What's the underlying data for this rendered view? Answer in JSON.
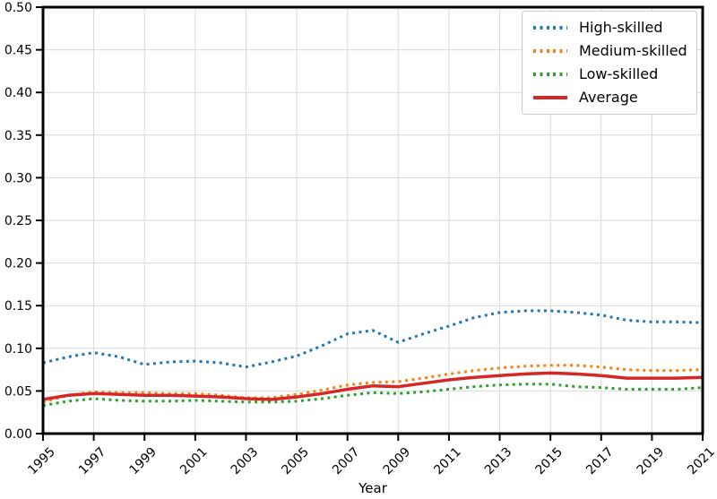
{
  "figure": {
    "background_color": "#ffffff",
    "axis_color": "#000000",
    "grid_color": "#d9d9d9"
  },
  "chart_data": {
    "type": "line",
    "title": "",
    "xlabel": "Year",
    "ylabel": "",
    "xlim": [
      1995,
      2021
    ],
    "ylim": [
      0.0,
      0.5
    ],
    "grid": true,
    "legend_position": "upper right",
    "x": [
      1995,
      1996,
      1997,
      1998,
      1999,
      2000,
      2001,
      2002,
      2003,
      2004,
      2005,
      2006,
      2007,
      2008,
      2009,
      2010,
      2011,
      2012,
      2013,
      2014,
      2015,
      2016,
      2017,
      2018,
      2019,
      2020,
      2021
    ],
    "x_tick_labels": [
      "1995",
      "1997",
      "1999",
      "2001",
      "2003",
      "2005",
      "2007",
      "2009",
      "2011",
      "2013",
      "2015",
      "2017",
      "2019",
      "2021"
    ],
    "y_tick_labels": [
      "0.00",
      "0.05",
      "0.10",
      "0.15",
      "0.20",
      "0.25",
      "0.30",
      "0.35",
      "0.40",
      "0.45",
      "0.50"
    ],
    "series": [
      {
        "name": "High-skilled",
        "color": "#1f77b4",
        "style": "dotted",
        "values": [
          0.083,
          0.09,
          0.095,
          0.09,
          0.081,
          0.084,
          0.085,
          0.083,
          0.078,
          0.084,
          0.091,
          0.103,
          0.117,
          0.121,
          0.107,
          0.117,
          0.126,
          0.136,
          0.142,
          0.144,
          0.144,
          0.142,
          0.139,
          0.133,
          0.131,
          0.131,
          0.13
        ]
      },
      {
        "name": "Medium-skilled",
        "color": "#ff7f0e",
        "style": "dotted",
        "values": [
          0.037,
          0.045,
          0.049,
          0.048,
          0.048,
          0.047,
          0.047,
          0.045,
          0.042,
          0.042,
          0.046,
          0.051,
          0.057,
          0.06,
          0.061,
          0.065,
          0.07,
          0.074,
          0.077,
          0.079,
          0.08,
          0.08,
          0.078,
          0.075,
          0.074,
          0.074,
          0.075
        ]
      },
      {
        "name": "Low-skilled",
        "color": "#2ca02c",
        "style": "dotted",
        "values": [
          0.033,
          0.038,
          0.041,
          0.039,
          0.038,
          0.038,
          0.039,
          0.038,
          0.037,
          0.037,
          0.038,
          0.041,
          0.045,
          0.048,
          0.047,
          0.049,
          0.052,
          0.055,
          0.057,
          0.058,
          0.058,
          0.055,
          0.054,
          0.052,
          0.052,
          0.052,
          0.054
        ]
      },
      {
        "name": "Average",
        "color": "#d62728",
        "style": "solid",
        "values": [
          0.04,
          0.045,
          0.047,
          0.046,
          0.045,
          0.045,
          0.044,
          0.043,
          0.041,
          0.04,
          0.043,
          0.047,
          0.052,
          0.056,
          0.055,
          0.059,
          0.063,
          0.066,
          0.068,
          0.07,
          0.071,
          0.07,
          0.068,
          0.065,
          0.065,
          0.065,
          0.066
        ]
      }
    ]
  }
}
